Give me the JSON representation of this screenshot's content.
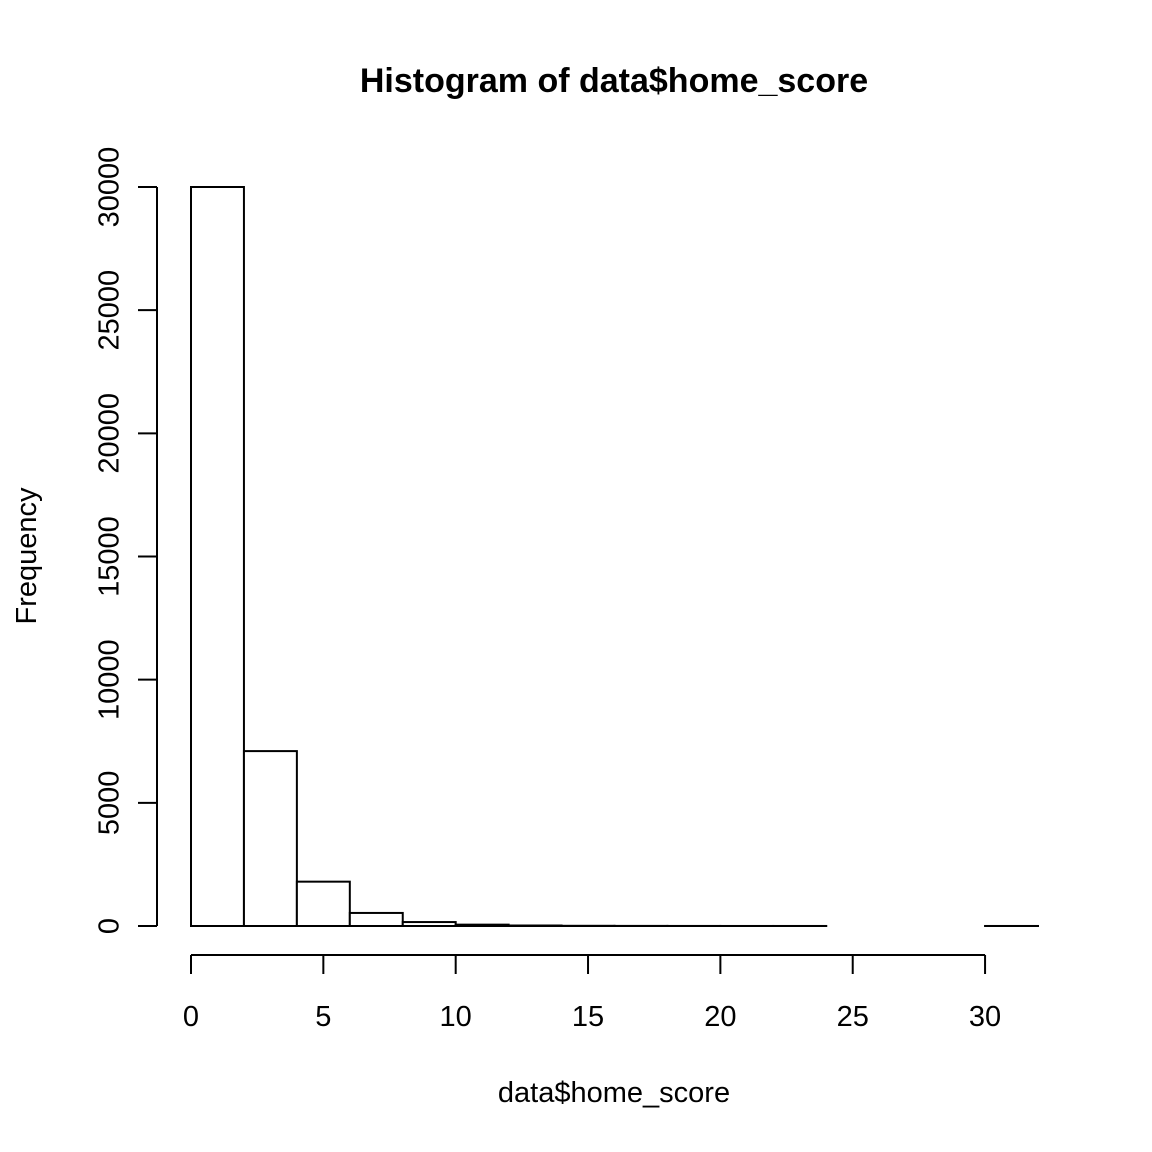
{
  "chart_data": {
    "type": "bar",
    "title": "Histogram of data$home_score",
    "xlabel": "data$home_score",
    "ylabel": "Frequency",
    "bins": [
      {
        "start": 0,
        "end": 2,
        "count": 30000
      },
      {
        "start": 2,
        "end": 4,
        "count": 7100
      },
      {
        "start": 4,
        "end": 6,
        "count": 1800
      },
      {
        "start": 6,
        "end": 8,
        "count": 530
      },
      {
        "start": 8,
        "end": 10,
        "count": 160
      },
      {
        "start": 10,
        "end": 12,
        "count": 55
      },
      {
        "start": 12,
        "end": 14,
        "count": 20
      },
      {
        "start": 14,
        "end": 16,
        "count": 8
      },
      {
        "start": 16,
        "end": 18,
        "count": 4
      },
      {
        "start": 18,
        "end": 20,
        "count": 2
      },
      {
        "start": 20,
        "end": 22,
        "count": 1
      },
      {
        "start": 22,
        "end": 24,
        "count": 1
      },
      {
        "start": 24,
        "end": 26,
        "count": 0
      },
      {
        "start": 26,
        "end": 28,
        "count": 0
      },
      {
        "start": 28,
        "end": 30,
        "count": 0
      },
      {
        "start": 30,
        "end": 32,
        "count": 1
      }
    ],
    "xlim": [
      0,
      32
    ],
    "ylim": [
      0,
      30000
    ],
    "x_ticks": [
      0,
      5,
      10,
      15,
      20,
      25,
      30
    ],
    "x_tick_labels": [
      "0",
      "5",
      "10",
      "15",
      "20",
      "25",
      "30"
    ],
    "y_ticks": [
      0,
      5000,
      10000,
      15000,
      20000,
      25000,
      30000
    ],
    "y_tick_labels": [
      "0",
      "5000",
      "10000",
      "15000",
      "20000",
      "25000",
      "30000"
    ],
    "grid": false,
    "legend": "none"
  }
}
